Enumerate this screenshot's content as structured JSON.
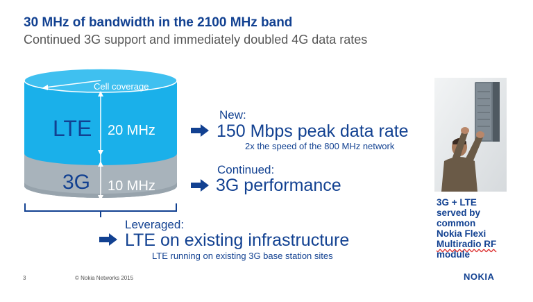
{
  "slide": {
    "title": "30 MHz of bandwidth in the 2100 MHz band",
    "subtitle": "Continued 3G support and immediately doubled 4G data rates"
  },
  "cylinder": {
    "top_label": "Cell coverage",
    "lte_label": "LTE",
    "lte_bandwidth": "20 MHz",
    "g3_label": "3G",
    "g3_bandwidth": "10 MHz",
    "colors": {
      "lte": "#1ab0ea",
      "lte_top": "#5ecbf3",
      "g3": "#a8b3bb",
      "g3_dark": "#8e9aa3"
    }
  },
  "bullets": {
    "new": {
      "heading": "New:",
      "main": "150 Mbps peak data rate",
      "sub": "2x the speed of the 800 MHz network"
    },
    "continued": {
      "heading": "Continued:",
      "main": "3G performance"
    },
    "leveraged": {
      "heading": "Leveraged:",
      "main": "LTE on existing infrastructure",
      "sub": "LTE running on existing 3G base station sites"
    }
  },
  "side_caption": {
    "lines": [
      "3G + LTE",
      "served by",
      "common",
      "Nokia Flexi",
      "Multiradio RF",
      "module"
    ]
  },
  "footer": {
    "page_number": "3",
    "copyright": "© Nokia Networks 2015",
    "logo": "NOKIA"
  },
  "colors": {
    "brand_blue": "#124191",
    "arrow_blue": "#124191"
  },
  "icons": {
    "bullet_arrow": "right-arrow-icon"
  }
}
